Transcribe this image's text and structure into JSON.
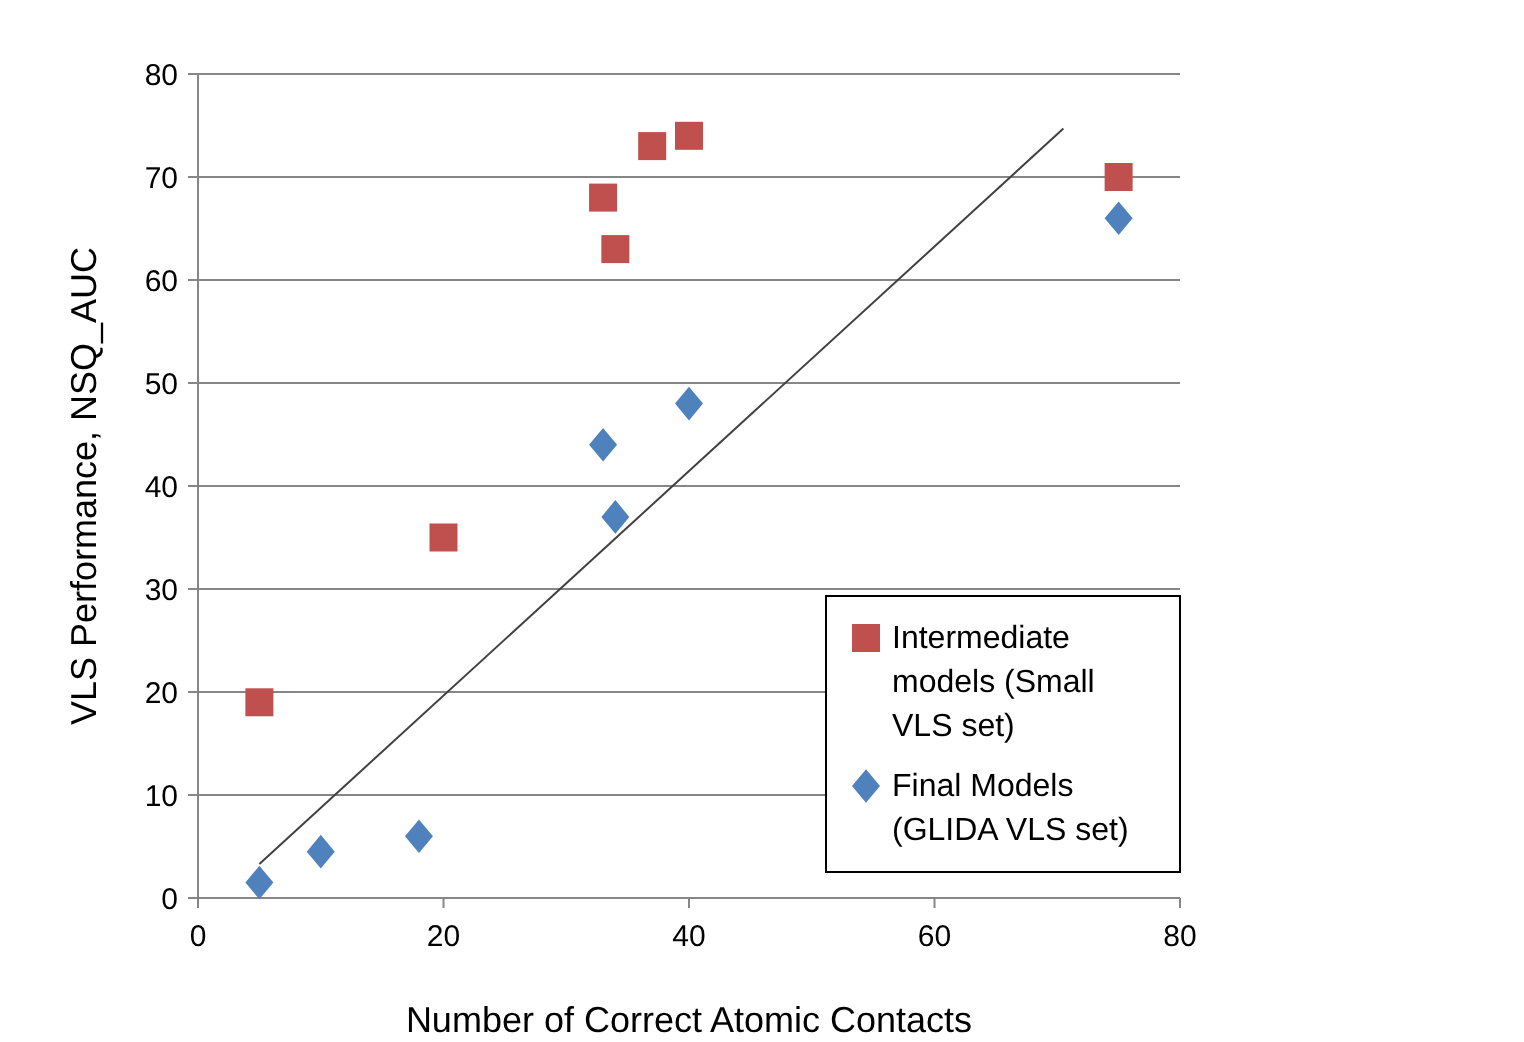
{
  "chart_data": {
    "type": "scatter",
    "xlabel": "Number of Correct Atomic Contacts",
    "ylabel": "VLS  Performance, NSQ_AUC",
    "xlim": [
      0,
      80
    ],
    "xticks": [
      0,
      20,
      40,
      60,
      80
    ],
    "ylim": [
      0,
      80
    ],
    "yticks": [
      0,
      10,
      20,
      30,
      40,
      50,
      60,
      70,
      80
    ],
    "grid": "y",
    "legend": "bottom right",
    "series": [
      {
        "name": "Intermediate models (Small VLS set)",
        "color": "#c0504d",
        "marker": "square",
        "x": [
          5,
          20,
          33,
          34,
          37,
          40,
          75
        ],
        "values": [
          19,
          35,
          68,
          63,
          73,
          74,
          70
        ]
      },
      {
        "name": "Final Models (GLIDA VLS set)",
        "color": "#4f81bd",
        "marker": "diamond",
        "x": [
          5,
          10,
          18,
          33,
          34,
          40,
          75
        ],
        "values": [
          1.5,
          4.5,
          6,
          44,
          37,
          48,
          66
        ]
      },
      {
        "type": "line",
        "color": "#404040",
        "x": [
          5,
          70.5
        ],
        "values": [
          3.3,
          74.7
        ]
      }
    ]
  }
}
